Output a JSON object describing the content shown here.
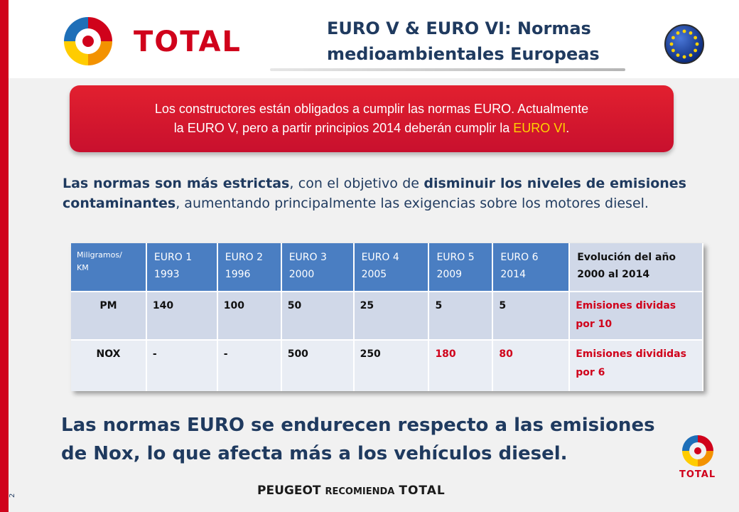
{
  "page": {
    "number": "2"
  },
  "header": {
    "brand": "TOTAL",
    "title_line1": "EURO V & EURO VI:  Normas",
    "title_line2": "medioambientales Europeas"
  },
  "colors": {
    "accent_red": "#d0021b",
    "highlight_yellow": "#ffd200",
    "table_header_blue": "#4a7ec2",
    "text_navy": "#1f3a5f"
  },
  "icons": {
    "logo": "total-logo-icon",
    "flag": "eu-flag-icon"
  },
  "banner": {
    "line1": "Los constructores están obligados a cumplir las normas EURO. Actualmente",
    "line2_prefix": "la EURO V, pero a partir principios 2014 deberán cumplir la ",
    "line2_highlight": "EURO VI",
    "line2_suffix": "."
  },
  "paragraph": {
    "bold1": "Las normas son más estrictas",
    "text1": ", con el objetivo de ",
    "bold2": "disminuir los niveles de emisiones contaminantes",
    "text2": ", aumentando principalmente las exigencias sobre los motores diesel."
  },
  "table": {
    "headers": [
      {
        "line1": "Miligramos/",
        "line2": "KM"
      },
      {
        "line1": "EURO 1",
        "line2": "1993"
      },
      {
        "line1": "EURO 2",
        "line2": "1996"
      },
      {
        "line1": "EURO 3",
        "line2": "2000"
      },
      {
        "line1": "EURO 4",
        "line2": "2005"
      },
      {
        "line1": "EURO 5",
        "line2": "2009"
      },
      {
        "line1": "EURO 6",
        "line2": "2014"
      },
      {
        "line1": "Evolución  del año",
        "line2": "2000 al 2014"
      }
    ],
    "rows": [
      {
        "label": "PM",
        "values": [
          "140",
          "100",
          "50",
          "25",
          "5",
          "5"
        ],
        "note": "Emisiones dividas por 10"
      },
      {
        "label": "NOX",
        "values": [
          "-",
          "-",
          "500",
          "250",
          "180",
          "80"
        ],
        "note": "Emisiones divididas por 6"
      }
    ]
  },
  "conclusion": {
    "line1": "Las normas EURO se endurecen respecto a las emisiones",
    "line2": "de  Nox, lo que afecta más a los vehículos diesel."
  },
  "footer": {
    "part1": "PEUGEOT",
    "part2": "RECOMIENDA",
    "part3": "TOTAL"
  },
  "small_logo": {
    "brand": "TOTAL"
  }
}
